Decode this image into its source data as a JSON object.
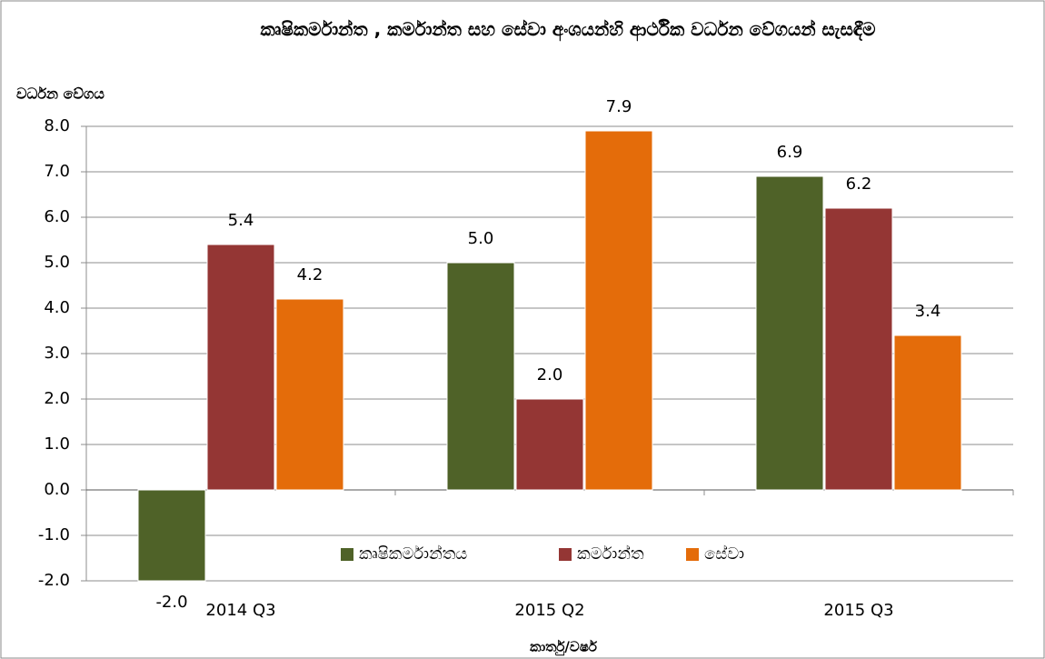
{
  "chart_data": {
    "type": "bar",
    "title": "කෘෂිකර්මාන්ත , කර්මාන්ත සහ සේවා අංශයන්හි ආර්ථික වර්ධන වේගයන් සැසඳීම",
    "y_label": "වර්ධන වේගය",
    "x_label": "කාර්තු/වර්ෂ",
    "categories": [
      "2014 Q3",
      "2015 Q2",
      "2015 Q3"
    ],
    "series": [
      {
        "name": "කෘෂිකර්මාන්තය",
        "color": "#4f6228",
        "values": [
          -2,
          5,
          6.9
        ],
        "value_labels": [
          "-2.0",
          "5.0",
          "6.9"
        ]
      },
      {
        "name": "කර්මාන්ත",
        "color": "#943634",
        "values": [
          5.4,
          2,
          6.2
        ],
        "value_labels": [
          "5.4",
          "2.0",
          "6.2"
        ]
      },
      {
        "name": "සේවා",
        "color": "#e46c0a",
        "values": [
          4.2,
          7.9,
          3.4
        ],
        "value_labels": [
          "4.2",
          "7.9",
          "3.4"
        ]
      }
    ],
    "ylim": [
      -2,
      8
    ],
    "yticks": [
      {
        "value": -2,
        "label": "-2.0"
      },
      {
        "value": -1,
        "label": "-1.0"
      },
      {
        "value": 0,
        "label": "0.0"
      },
      {
        "value": 1,
        "label": "1.0"
      },
      {
        "value": 2,
        "label": "2.0"
      },
      {
        "value": 3,
        "label": "3.0"
      },
      {
        "value": 4,
        "label": "4.0"
      },
      {
        "value": 5,
        "label": "5.0"
      },
      {
        "value": 6,
        "label": "6.0"
      },
      {
        "value": 7,
        "label": "7.0"
      },
      {
        "value": 8,
        "label": "8.0"
      }
    ],
    "grid": true,
    "legend": "inside-bottom"
  }
}
